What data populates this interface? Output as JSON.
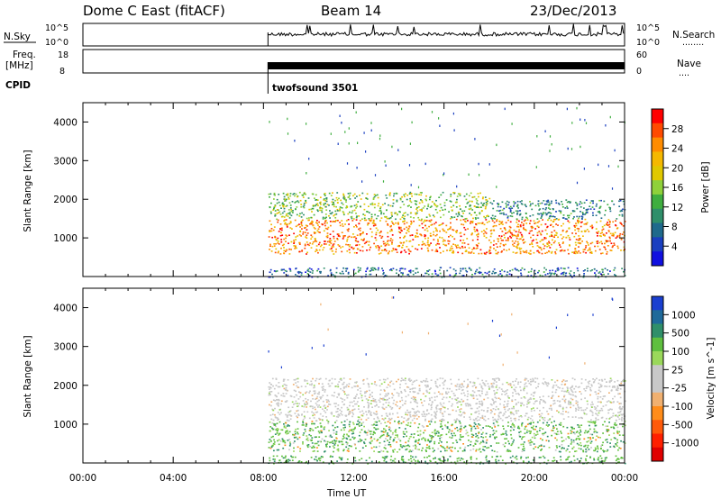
{
  "header": {
    "title": "Dome C East (fitACF)",
    "beam": "Beam 14",
    "date": "23/Dec/2013"
  },
  "noise_panel": {
    "left_label": "N.Sky",
    "left_ticks": [
      "10^5",
      "10^0"
    ],
    "right_ticks": [
      "10^5",
      "10^0"
    ],
    "right_label": "N.Search",
    "right_dots": "........"
  },
  "freq_panel": {
    "left_label_1": "Freq.",
    "left_label_2": "[MHz]",
    "left_ticks": [
      "18",
      "8"
    ],
    "right_ticks": [
      "60",
      "0"
    ],
    "right_label": "Nave",
    "right_dots": "...."
  },
  "cpid": {
    "label": "CPID",
    "value": "twofsound 3501"
  },
  "x_axis": {
    "label": "Time UT",
    "ticks": [
      "00:00",
      "04:00",
      "08:00",
      "12:00",
      "16:00",
      "20:00",
      "00:00"
    ],
    "range_hours": [
      0,
      24
    ],
    "data_start_hour": 8.2
  },
  "power_colorbar": {
    "label": "Power [dB]",
    "ticks": [
      "28",
      "24",
      "20",
      "16",
      "12",
      "8",
      "4"
    ],
    "colors": [
      "#ff0000",
      "#ff4a00",
      "#ff8c00",
      "#f5b800",
      "#e0c800",
      "#8fd13a",
      "#3fae3f",
      "#2f8f6a",
      "#1f6a8c",
      "#1a3fc0",
      "#1010e0"
    ]
  },
  "velocity_colorbar": {
    "label": "Velocity [m s^-1]",
    "ticks": [
      "1000",
      "500",
      "100",
      "25",
      "-25",
      "-100",
      "-500",
      "-1000"
    ],
    "colors": [
      "#1a3fd0",
      "#1f6a9a",
      "#2f8f6a",
      "#5fbf3f",
      "#9ad85a",
      "#c8c8c8",
      "#c8c8c8",
      "#f0b070",
      "#ff8c1a",
      "#ff5a0a",
      "#ff2000",
      "#e00000"
    ]
  },
  "chart_data": [
    {
      "type": "heatmap",
      "title": "Power",
      "xlabel": "",
      "ylabel": "Slant Range [km]",
      "xlim": [
        0,
        24
      ],
      "ylim": [
        0,
        4500
      ],
      "y_ticks": [
        1000,
        2000,
        3000,
        4000
      ],
      "colorbar_range": [
        0,
        30
      ],
      "bands": [
        {
          "range_km": [
            0,
            250
          ],
          "hours": [
            8.2,
            24
          ],
          "power_db": 6
        },
        {
          "range_km": [
            600,
            1500
          ],
          "hours": [
            8.2,
            24
          ],
          "power_db": 24
        },
        {
          "range_km": [
            1500,
            2200
          ],
          "hours": [
            8.2,
            18
          ],
          "power_db": 14
        },
        {
          "range_km": [
            1500,
            2000
          ],
          "hours": [
            18,
            24
          ],
          "power_db": 8
        }
      ]
    },
    {
      "type": "heatmap",
      "title": "Velocity",
      "xlabel": "Time UT",
      "ylabel": "Slant Range [km]",
      "xlim": [
        0,
        24
      ],
      "ylim": [
        0,
        4500
      ],
      "y_ticks": [
        1000,
        2000,
        3000,
        4000
      ],
      "colorbar_range": [
        -1000,
        1000
      ],
      "bands": [
        {
          "range_km": [
            0,
            200
          ],
          "hours": [
            8.2,
            24
          ],
          "velocity": 100
        },
        {
          "range_km": [
            300,
            1100
          ],
          "hours": [
            8.2,
            24
          ],
          "velocity": 300
        },
        {
          "range_km": [
            1100,
            2200
          ],
          "hours": [
            8.2,
            24
          ],
          "velocity": 0
        }
      ]
    }
  ]
}
